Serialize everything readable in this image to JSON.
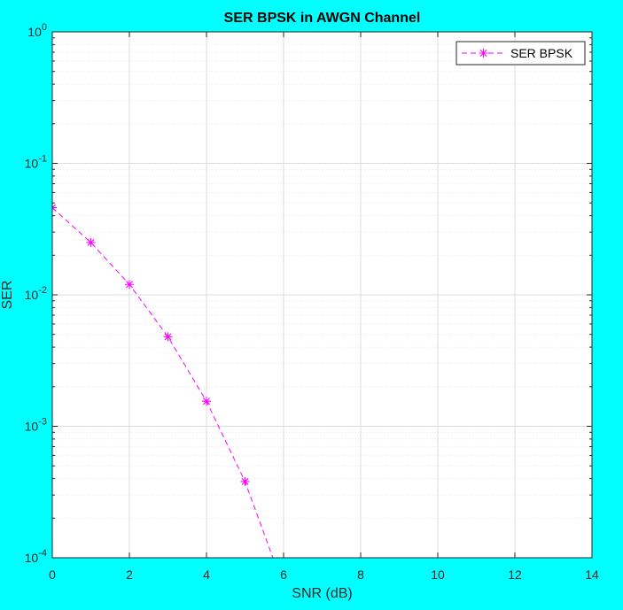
{
  "chart_data": {
    "type": "line",
    "title": "SER BPSK in AWGN Channel",
    "xlabel": "SNR (dB)",
    "ylabel": "SER",
    "xlim": [
      0,
      14
    ],
    "ylim": [
      0.0001,
      1
    ],
    "yscale": "log",
    "grid": true,
    "minor_grid": true,
    "legend_position": "top-right",
    "x_ticks": [
      0,
      2,
      4,
      6,
      8,
      10,
      12,
      14
    ],
    "x_tick_labels": [
      "0",
      "2",
      "4",
      "6",
      "8",
      "10",
      "12",
      "14"
    ],
    "y_tick_exponents": [
      -4,
      -3,
      -2,
      -1,
      0
    ],
    "y_tick_base": "10",
    "background_color": "#00FFFF",
    "series": [
      {
        "name": "SER BPSK",
        "color": "#FF00FF",
        "line_style": "dashed",
        "marker": "asterisk",
        "x": [
          0,
          1,
          2,
          3,
          4,
          5,
          6
        ],
        "y": [
          0.046,
          0.025,
          0.012,
          0.0048,
          0.00155,
          0.00038,
          6e-05
        ]
      }
    ]
  }
}
